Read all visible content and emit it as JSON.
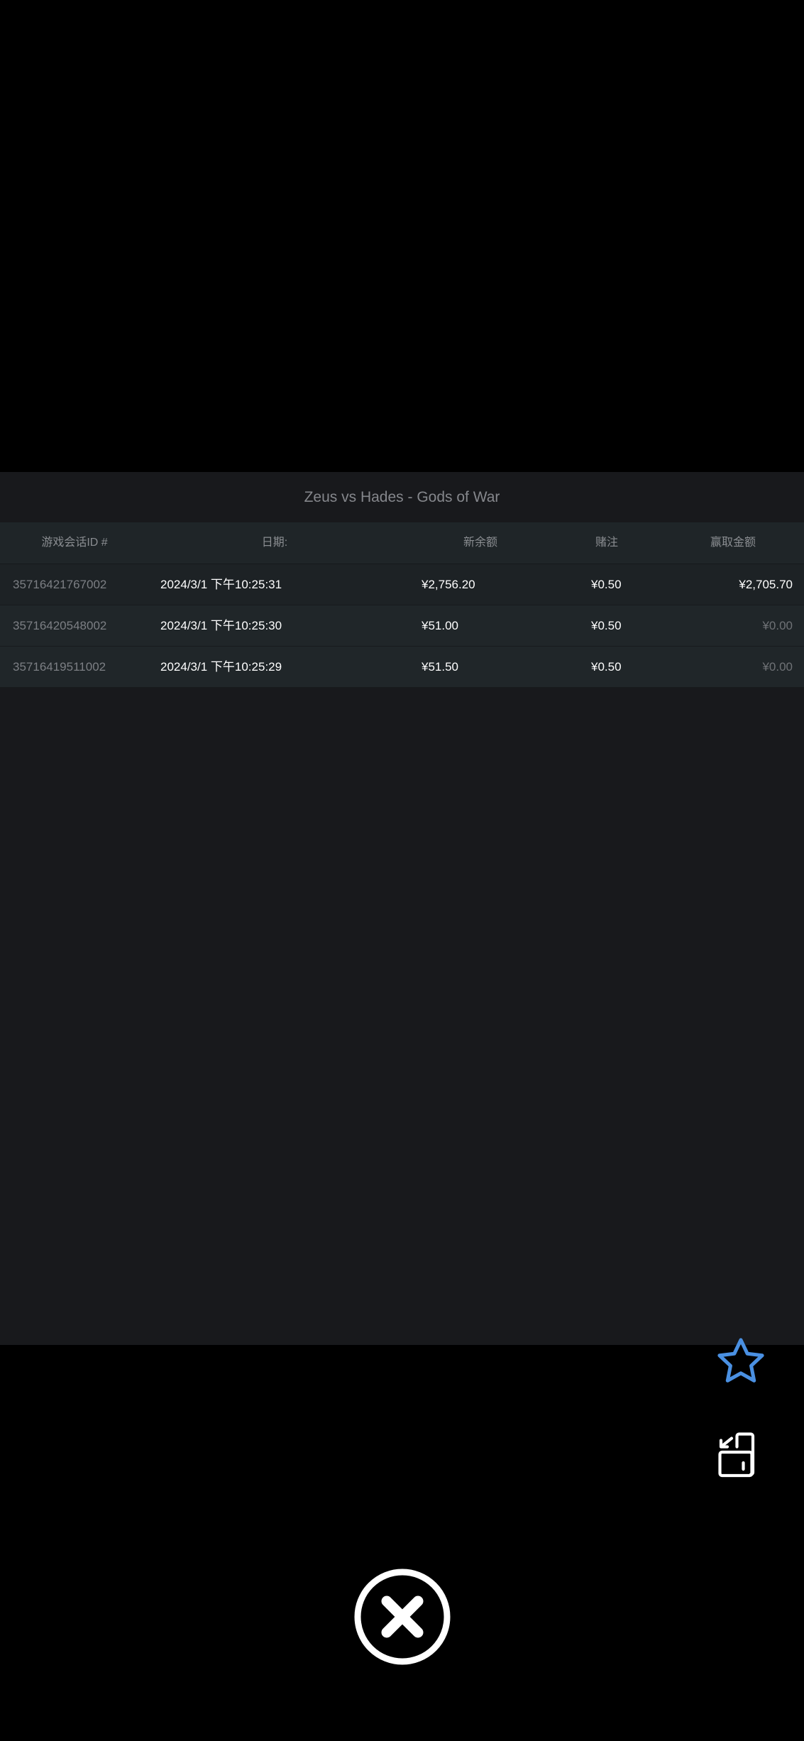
{
  "title": "Zeus vs Hades - Gods of War",
  "columns": [
    "游戏会话ID #",
    "日期:",
    "新余额",
    "赌注",
    "赢取金额"
  ],
  "rows": [
    {
      "id": "35716421767002",
      "date": "2024/3/1 下午10:25:31",
      "balance": "¥2,756.20",
      "bet": "¥0.50",
      "win": "¥2,705.70"
    },
    {
      "id": "35716420548002",
      "date": "2024/3/1 下午10:25:30",
      "balance": "¥51.00",
      "bet": "¥0.50",
      "win": "¥0.00"
    },
    {
      "id": "35716419511002",
      "date": "2024/3/1 下午10:25:29",
      "balance": "¥51.50",
      "bet": "¥0.50",
      "win": "¥0.00"
    }
  ],
  "icons": {
    "favorite": "star-icon",
    "rotate": "rotate-screen-icon",
    "close": "close-circle-icon"
  },
  "colors": {
    "accent": "#4a90e2",
    "panel": "#18191c",
    "header": "#1f2528"
  }
}
